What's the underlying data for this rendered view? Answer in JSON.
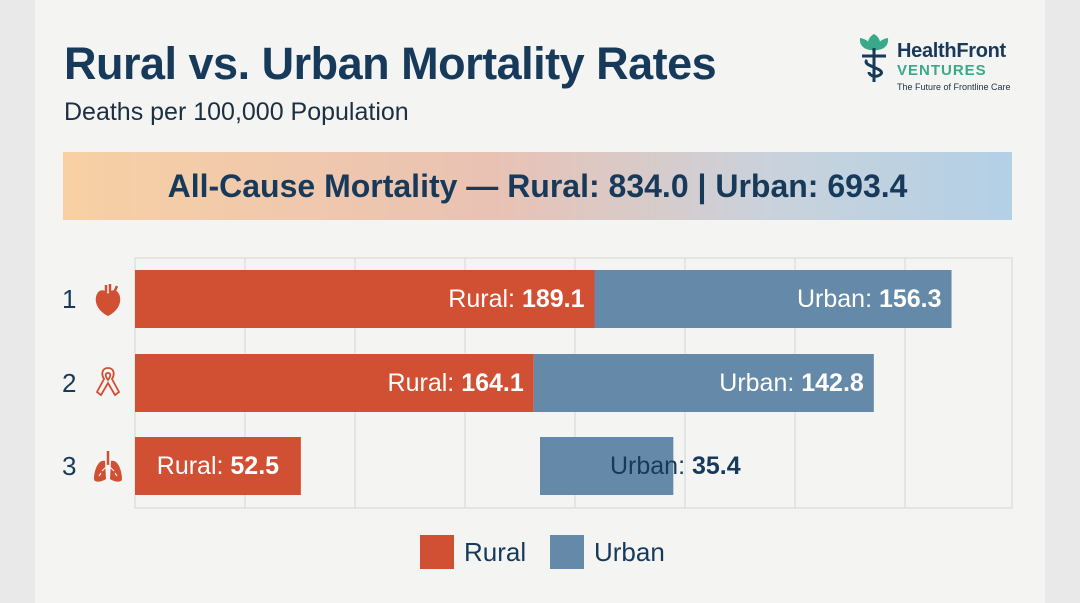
{
  "header": {
    "title": "Rural vs. Urban Mortality Rates",
    "subtitle": "Deaths per 100,000 Population"
  },
  "logo": {
    "name": "HealthFront",
    "ventures": "VENTURES",
    "tagline": "The Future of Frontline Care"
  },
  "banner": {
    "text": "All-Cause Mortality — Rural: 834.0 | Urban: 693.4"
  },
  "colors": {
    "rural": "#d14f33",
    "urban": "#6489a9",
    "title": "#173a5a"
  },
  "chart_data": {
    "type": "bar",
    "orientation": "horizontal",
    "stacked": true,
    "categories": [
      "1",
      "2",
      "3"
    ],
    "category_icons": [
      "heart-icon",
      "cancer-ribbon-icon",
      "lungs-icon"
    ],
    "series": [
      {
        "name": "Rural",
        "values": [
          189.1,
          164.1,
          52.5
        ],
        "labels": [
          "Rural: 189.1",
          "Rural: 164.1",
          "Rural: 52.5"
        ]
      },
      {
        "name": "Urban",
        "values": [
          156.3,
          142.8,
          35.4
        ],
        "labels": [
          "Urban: 156.3",
          "Urban: 142.8",
          "Urban: 35.4"
        ]
      }
    ],
    "grid": true,
    "legend": "bottom"
  },
  "legend": {
    "rural": "Rural",
    "urban": "Urban"
  }
}
